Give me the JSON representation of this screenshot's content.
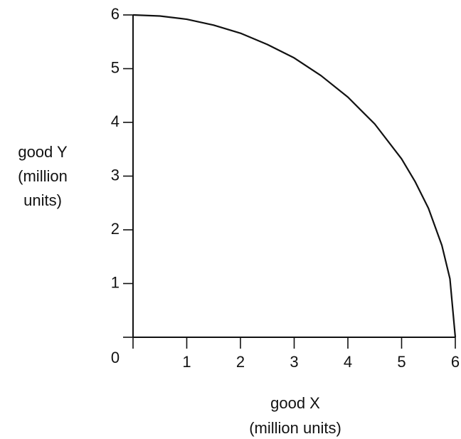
{
  "chart_data": {
    "type": "line",
    "x_label": [
      "good X",
      "(million units)"
    ],
    "y_label": [
      "good Y",
      "(million",
      "units)"
    ],
    "series": [
      {
        "color": "#111111",
        "x": [
          0,
          0.5,
          1,
          1.5,
          2,
          2.5,
          3,
          3.5,
          4,
          4.5,
          5,
          5.25,
          5.5,
          5.75,
          5.9,
          6
        ],
        "values": [
          6,
          5.98,
          5.92,
          5.81,
          5.66,
          5.45,
          5.2,
          4.87,
          4.47,
          3.97,
          3.32,
          2.9,
          2.4,
          1.71,
          1.09,
          0
        ]
      }
    ],
    "xlim": [
      0,
      6
    ],
    "ylim": [
      0,
      6
    ],
    "xticks": [
      0,
      1,
      2,
      3,
      4,
      5,
      6
    ],
    "yticks": [
      0,
      1,
      2,
      3,
      4,
      5,
      6
    ]
  }
}
